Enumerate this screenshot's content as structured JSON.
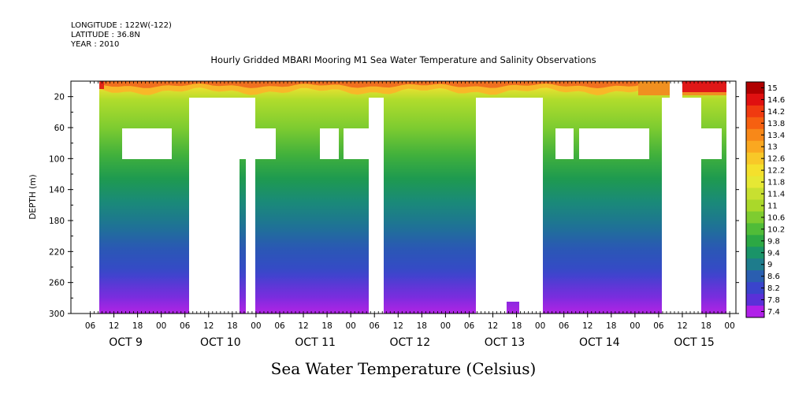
{
  "header": {
    "longitude": "LONGITUDE : 122W(-122)",
    "latitude": "LATITUDE : 36.8N",
    "year": "YEAR : 2010"
  },
  "chart_data": {
    "type": "heatmap",
    "title": "Hourly Gridded MBARI Mooring M1 Sea Water Temperature and Salinity Observations",
    "xlabel": "Sea Water Temperature (Celsius)",
    "ylabel": "DEPTH (m)",
    "ylim": [
      300,
      0
    ],
    "y_ticks": [
      20,
      60,
      100,
      140,
      180,
      220,
      260,
      300
    ],
    "x_hour_labels": [
      "06",
      "12",
      "18",
      "00",
      "06",
      "12",
      "18",
      "00",
      "06",
      "12",
      "18",
      "00",
      "06",
      "12",
      "18",
      "00",
      "06",
      "12",
      "18",
      "00",
      "06",
      "12",
      "18",
      "00",
      "06",
      "12",
      "18",
      "00"
    ],
    "x_day_labels": [
      "OCT  9",
      "OCT 10",
      "OCT 11",
      "OCT 12",
      "OCT 13",
      "OCT 14",
      "OCT 15"
    ],
    "colorbar_labels": [
      "15",
      "14.6",
      "14.2",
      "13.8",
      "13.4",
      "13",
      "12.6",
      "12.2",
      "11.8",
      "11.4",
      "11",
      "10.6",
      "10.2",
      "9.8",
      "9.4",
      "9",
      "8.6",
      "8.2",
      "7.8",
      "7.4"
    ],
    "colorbar_colors": [
      "#b00000",
      "#e01010",
      "#f03a10",
      "#f66010",
      "#f88818",
      "#faa820",
      "#f8c828",
      "#f4e02c",
      "#e6e834",
      "#c8e030",
      "#aad82a",
      "#7ecc30",
      "#50bc38",
      "#2ca844",
      "#1a9468",
      "#1e7c8c",
      "#2a5eb0",
      "#3a44cc",
      "#5a30d8",
      "#b020e8"
    ],
    "temperature_range": [
      7.4,
      15
    ],
    "depth_profile": [
      {
        "depth": 5,
        "temp": 12.6
      },
      {
        "depth": 12,
        "temp": 12.0
      },
      {
        "depth": 20,
        "temp": 11.4
      },
      {
        "depth": 40,
        "temp": 11.0
      },
      {
        "depth": 60,
        "temp": 10.8
      },
      {
        "depth": 80,
        "temp": 10.4
      },
      {
        "depth": 100,
        "temp": 10.0
      },
      {
        "depth": 120,
        "temp": 9.7
      },
      {
        "depth": 140,
        "temp": 9.4
      },
      {
        "depth": 160,
        "temp": 9.2
      },
      {
        "depth": 180,
        "temp": 9.0
      },
      {
        "depth": 200,
        "temp": 8.8
      },
      {
        "depth": 220,
        "temp": 8.6
      },
      {
        "depth": 240,
        "temp": 8.4
      },
      {
        "depth": 260,
        "temp": 8.2
      },
      {
        "depth": 280,
        "temp": 8.0
      },
      {
        "depth": 300,
        "temp": 7.6
      }
    ]
  }
}
